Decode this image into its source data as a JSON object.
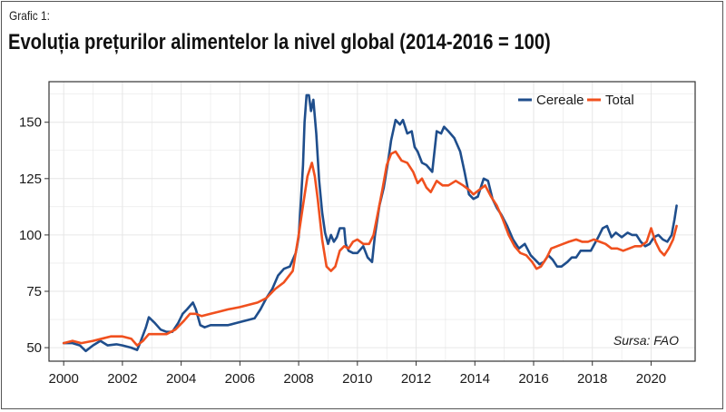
{
  "header": {
    "label": "Grafic 1:",
    "title": "Evoluția prețurilor alimentelor la nivel global (2014-2016 = 100)"
  },
  "source_note": "Sursa: FAO",
  "colors": {
    "Cereale": "#1f4e8c",
    "Total": "#f0501e",
    "grid": "#e6e6e6",
    "panel_border": "#333333"
  },
  "chart_data": {
    "type": "line",
    "xlim": [
      1999.5,
      2021.5
    ],
    "ylim": [
      44,
      168
    ],
    "x_ticks": [
      2000,
      2002,
      2004,
      2006,
      2008,
      2010,
      2012,
      2014,
      2016,
      2018,
      2020
    ],
    "x_tick_labels": [
      "2000",
      "2002",
      "2004",
      "2006",
      "2008",
      "2010",
      "2012",
      "2014",
      "2016",
      "2018",
      "2020"
    ],
    "y_ticks": [
      50,
      75,
      100,
      125,
      150
    ],
    "y_tick_labels": [
      "50",
      "75",
      "100",
      "125",
      "150"
    ],
    "grid": true,
    "legend_position": "top-right",
    "series": [
      {
        "name": "Cereale",
        "points": [
          [
            2000.0,
            52
          ],
          [
            2000.3,
            52
          ],
          [
            2000.55,
            51
          ],
          [
            2000.75,
            48.5
          ],
          [
            2001.0,
            51
          ],
          [
            2001.25,
            53
          ],
          [
            2001.5,
            51
          ],
          [
            2001.8,
            51.5
          ],
          [
            2002.0,
            51
          ],
          [
            2002.3,
            50
          ],
          [
            2002.5,
            49
          ],
          [
            2002.6,
            52
          ],
          [
            2002.8,
            59
          ],
          [
            2002.9,
            63.5
          ],
          [
            2003.1,
            61
          ],
          [
            2003.3,
            58
          ],
          [
            2003.5,
            57
          ],
          [
            2003.7,
            57
          ],
          [
            2003.9,
            61
          ],
          [
            2004.05,
            65
          ],
          [
            2004.2,
            67
          ],
          [
            2004.4,
            70
          ],
          [
            2004.5,
            67
          ],
          [
            2004.65,
            60
          ],
          [
            2004.8,
            59
          ],
          [
            2005.0,
            60
          ],
          [
            2005.3,
            60
          ],
          [
            2005.6,
            60
          ],
          [
            2005.9,
            61
          ],
          [
            2006.2,
            62
          ],
          [
            2006.5,
            63
          ],
          [
            2006.7,
            67
          ],
          [
            2006.9,
            72
          ],
          [
            2007.1,
            76
          ],
          [
            2007.3,
            82
          ],
          [
            2007.5,
            85
          ],
          [
            2007.7,
            86
          ],
          [
            2007.9,
            92
          ],
          [
            2008.0,
            99
          ],
          [
            2008.1,
            120
          ],
          [
            2008.15,
            131
          ],
          [
            2008.2,
            150
          ],
          [
            2008.27,
            162
          ],
          [
            2008.35,
            162
          ],
          [
            2008.42,
            155
          ],
          [
            2008.5,
            160
          ],
          [
            2008.6,
            145
          ],
          [
            2008.7,
            124
          ],
          [
            2008.8,
            110
          ],
          [
            2008.9,
            101
          ],
          [
            2009.0,
            96
          ],
          [
            2009.1,
            100
          ],
          [
            2009.2,
            97
          ],
          [
            2009.3,
            99
          ],
          [
            2009.4,
            103
          ],
          [
            2009.55,
            103
          ],
          [
            2009.6,
            96
          ],
          [
            2009.7,
            93
          ],
          [
            2009.85,
            92
          ],
          [
            2010.0,
            92
          ],
          [
            2010.2,
            95
          ],
          [
            2010.35,
            90
          ],
          [
            2010.5,
            88
          ],
          [
            2010.6,
            100
          ],
          [
            2010.75,
            113
          ],
          [
            2010.9,
            121
          ],
          [
            2011.05,
            133
          ],
          [
            2011.15,
            142
          ],
          [
            2011.3,
            151
          ],
          [
            2011.45,
            149
          ],
          [
            2011.55,
            151
          ],
          [
            2011.7,
            145
          ],
          [
            2011.85,
            146
          ],
          [
            2011.95,
            139
          ],
          [
            2012.05,
            137
          ],
          [
            2012.2,
            132
          ],
          [
            2012.35,
            131
          ],
          [
            2012.55,
            128
          ],
          [
            2012.7,
            146
          ],
          [
            2012.85,
            145
          ],
          [
            2012.95,
            148
          ],
          [
            2013.1,
            146
          ],
          [
            2013.3,
            143
          ],
          [
            2013.5,
            137
          ],
          [
            2013.65,
            128
          ],
          [
            2013.8,
            118
          ],
          [
            2013.95,
            116
          ],
          [
            2014.1,
            117
          ],
          [
            2014.3,
            125
          ],
          [
            2014.45,
            124
          ],
          [
            2014.6,
            116
          ],
          [
            2014.75,
            112
          ],
          [
            2014.9,
            109
          ],
          [
            2015.1,
            104
          ],
          [
            2015.3,
            98
          ],
          [
            2015.5,
            94
          ],
          [
            2015.7,
            96
          ],
          [
            2015.9,
            91
          ],
          [
            2016.05,
            89
          ],
          [
            2016.2,
            87
          ],
          [
            2016.35,
            88
          ],
          [
            2016.5,
            91
          ],
          [
            2016.65,
            89
          ],
          [
            2016.8,
            86
          ],
          [
            2016.95,
            86
          ],
          [
            2017.15,
            88
          ],
          [
            2017.3,
            90
          ],
          [
            2017.45,
            90
          ],
          [
            2017.6,
            93
          ],
          [
            2017.8,
            93
          ],
          [
            2017.95,
            93
          ],
          [
            2018.2,
            99
          ],
          [
            2018.35,
            103
          ],
          [
            2018.5,
            104
          ],
          [
            2018.65,
            99
          ],
          [
            2018.8,
            101
          ],
          [
            2019.0,
            99
          ],
          [
            2019.2,
            101
          ],
          [
            2019.35,
            100
          ],
          [
            2019.5,
            100
          ],
          [
            2019.65,
            97
          ],
          [
            2019.8,
            95
          ],
          [
            2019.95,
            96
          ],
          [
            2020.1,
            99
          ],
          [
            2020.25,
            100
          ],
          [
            2020.4,
            98
          ],
          [
            2020.55,
            97
          ],
          [
            2020.7,
            100
          ],
          [
            2020.8,
            107
          ],
          [
            2020.87,
            113
          ]
        ]
      },
      {
        "name": "Total",
        "points": [
          [
            2000.0,
            52
          ],
          [
            2000.3,
            53
          ],
          [
            2000.6,
            52
          ],
          [
            2001.0,
            53
          ],
          [
            2001.3,
            54
          ],
          [
            2001.6,
            55
          ],
          [
            2002.0,
            55
          ],
          [
            2002.3,
            54
          ],
          [
            2002.5,
            51
          ],
          [
            2002.7,
            53
          ],
          [
            2002.9,
            56
          ],
          [
            2003.2,
            56
          ],
          [
            2003.5,
            56
          ],
          [
            2003.8,
            58
          ],
          [
            2004.1,
            62
          ],
          [
            2004.3,
            65
          ],
          [
            2004.5,
            65
          ],
          [
            2004.7,
            64
          ],
          [
            2005.0,
            65
          ],
          [
            2005.3,
            66
          ],
          [
            2005.6,
            67
          ],
          [
            2006.0,
            68
          ],
          [
            2006.3,
            69
          ],
          [
            2006.6,
            70
          ],
          [
            2006.9,
            72
          ],
          [
            2007.2,
            76
          ],
          [
            2007.5,
            79
          ],
          [
            2007.8,
            84
          ],
          [
            2008.0,
            100
          ],
          [
            2008.15,
            113
          ],
          [
            2008.3,
            126
          ],
          [
            2008.45,
            132
          ],
          [
            2008.55,
            126
          ],
          [
            2008.65,
            116
          ],
          [
            2008.8,
            98
          ],
          [
            2008.95,
            86
          ],
          [
            2009.1,
            84
          ],
          [
            2009.25,
            86
          ],
          [
            2009.4,
            93
          ],
          [
            2009.55,
            95
          ],
          [
            2009.7,
            94
          ],
          [
            2009.85,
            97
          ],
          [
            2010.0,
            98
          ],
          [
            2010.2,
            96
          ],
          [
            2010.4,
            96
          ],
          [
            2010.55,
            100
          ],
          [
            2010.7,
            110
          ],
          [
            2010.85,
            120
          ],
          [
            2011.0,
            131
          ],
          [
            2011.15,
            136
          ],
          [
            2011.3,
            137
          ],
          [
            2011.5,
            133
          ],
          [
            2011.7,
            132
          ],
          [
            2011.9,
            128
          ],
          [
            2012.05,
            123
          ],
          [
            2012.2,
            125
          ],
          [
            2012.35,
            121
          ],
          [
            2012.5,
            119
          ],
          [
            2012.7,
            124
          ],
          [
            2012.9,
            122
          ],
          [
            2013.1,
            122
          ],
          [
            2013.35,
            124
          ],
          [
            2013.6,
            122
          ],
          [
            2013.8,
            120
          ],
          [
            2013.95,
            118
          ],
          [
            2014.15,
            120
          ],
          [
            2014.35,
            122
          ],
          [
            2014.55,
            117
          ],
          [
            2014.75,
            113
          ],
          [
            2014.95,
            107
          ],
          [
            2015.15,
            100
          ],
          [
            2015.35,
            95
          ],
          [
            2015.55,
            92
          ],
          [
            2015.75,
            91
          ],
          [
            2015.95,
            88
          ],
          [
            2016.1,
            85
          ],
          [
            2016.25,
            86
          ],
          [
            2016.45,
            90
          ],
          [
            2016.6,
            94
          ],
          [
            2016.8,
            95
          ],
          [
            2017.0,
            96
          ],
          [
            2017.2,
            97
          ],
          [
            2017.45,
            98
          ],
          [
            2017.65,
            97
          ],
          [
            2017.85,
            97
          ],
          [
            2018.05,
            98
          ],
          [
            2018.25,
            97
          ],
          [
            2018.45,
            96
          ],
          [
            2018.65,
            94
          ],
          [
            2018.85,
            94
          ],
          [
            2019.05,
            93
          ],
          [
            2019.25,
            94
          ],
          [
            2019.45,
            95
          ],
          [
            2019.65,
            95
          ],
          [
            2019.85,
            97
          ],
          [
            2020.0,
            103
          ],
          [
            2020.15,
            97
          ],
          [
            2020.3,
            93
          ],
          [
            2020.45,
            91
          ],
          [
            2020.6,
            94
          ],
          [
            2020.75,
            98
          ],
          [
            2020.87,
            104
          ]
        ]
      }
    ]
  }
}
